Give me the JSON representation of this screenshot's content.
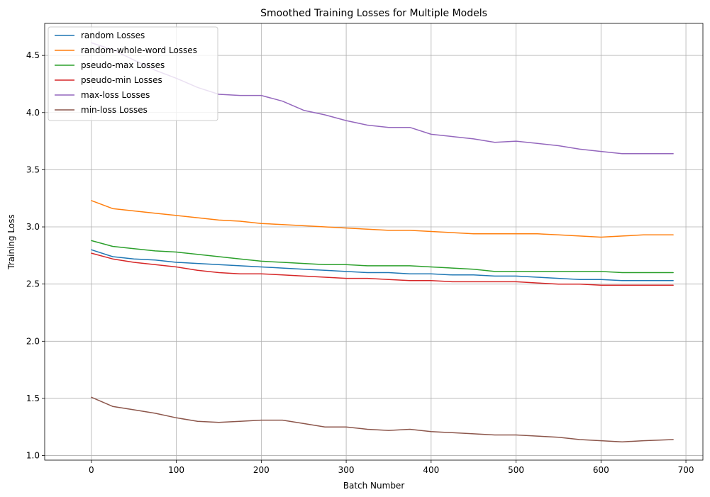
{
  "chart_data": {
    "type": "line",
    "title": "Smoothed Training Losses for Multiple Models",
    "xlabel": "Batch Number",
    "ylabel": "Training Loss",
    "xlim": [
      -55,
      720
    ],
    "ylim": [
      0.96,
      4.78
    ],
    "xticks": [
      0,
      100,
      200,
      300,
      400,
      500,
      600,
      700
    ],
    "yticks": [
      1.0,
      1.5,
      2.0,
      2.5,
      3.0,
      3.5,
      4.0,
      4.5
    ],
    "ytick_labels": [
      "1.0",
      "1.5",
      "2.0",
      "2.5",
      "3.0",
      "3.5",
      "4.0",
      "4.5"
    ],
    "grid": true,
    "legend_position": "upper-left",
    "x": [
      0,
      25,
      50,
      75,
      100,
      125,
      150,
      175,
      200,
      225,
      250,
      275,
      300,
      325,
      350,
      375,
      400,
      425,
      450,
      475,
      500,
      525,
      550,
      575,
      600,
      625,
      650,
      685
    ],
    "series": [
      {
        "name": "random Losses",
        "color": "#1f77b4",
        "values": [
          2.8,
          2.74,
          2.72,
          2.71,
          2.69,
          2.68,
          2.67,
          2.66,
          2.65,
          2.64,
          2.63,
          2.62,
          2.61,
          2.6,
          2.6,
          2.59,
          2.59,
          2.58,
          2.58,
          2.57,
          2.57,
          2.56,
          2.55,
          2.54,
          2.54,
          2.53,
          2.53,
          2.53
        ]
      },
      {
        "name": "random-whole-word Losses",
        "color": "#ff7f0e",
        "values": [
          3.23,
          3.16,
          3.14,
          3.12,
          3.1,
          3.08,
          3.06,
          3.05,
          3.03,
          3.02,
          3.01,
          3.0,
          2.99,
          2.98,
          2.97,
          2.97,
          2.96,
          2.95,
          2.94,
          2.94,
          2.94,
          2.94,
          2.93,
          2.92,
          2.91,
          2.92,
          2.93,
          2.93
        ]
      },
      {
        "name": "pseudo-max Losses",
        "color": "#2ca02c",
        "values": [
          2.88,
          2.83,
          2.81,
          2.79,
          2.78,
          2.76,
          2.74,
          2.72,
          2.7,
          2.69,
          2.68,
          2.67,
          2.67,
          2.66,
          2.66,
          2.66,
          2.65,
          2.64,
          2.63,
          2.61,
          2.61,
          2.61,
          2.61,
          2.61,
          2.61,
          2.6,
          2.6,
          2.6
        ]
      },
      {
        "name": "pseudo-min Losses",
        "color": "#d62728",
        "values": [
          2.77,
          2.72,
          2.69,
          2.67,
          2.65,
          2.62,
          2.6,
          2.59,
          2.59,
          2.58,
          2.57,
          2.56,
          2.55,
          2.55,
          2.54,
          2.53,
          2.53,
          2.52,
          2.52,
          2.52,
          2.52,
          2.51,
          2.5,
          2.5,
          2.49,
          2.49,
          2.49,
          2.49
        ]
      },
      {
        "name": "max-loss Losses",
        "color": "#9467bd",
        "values": [
          4.61,
          4.55,
          4.46,
          4.37,
          4.3,
          4.22,
          4.16,
          4.15,
          4.15,
          4.1,
          4.02,
          3.98,
          3.93,
          3.89,
          3.87,
          3.87,
          3.81,
          3.79,
          3.77,
          3.74,
          3.75,
          3.73,
          3.71,
          3.68,
          3.66,
          3.64,
          3.64,
          3.64
        ]
      },
      {
        "name": "min-loss Losses",
        "color": "#8c564b",
        "values": [
          1.51,
          1.43,
          1.4,
          1.37,
          1.33,
          1.3,
          1.29,
          1.3,
          1.31,
          1.31,
          1.28,
          1.25,
          1.25,
          1.23,
          1.22,
          1.23,
          1.21,
          1.2,
          1.19,
          1.18,
          1.18,
          1.17,
          1.16,
          1.14,
          1.13,
          1.12,
          1.13,
          1.14
        ]
      }
    ]
  }
}
